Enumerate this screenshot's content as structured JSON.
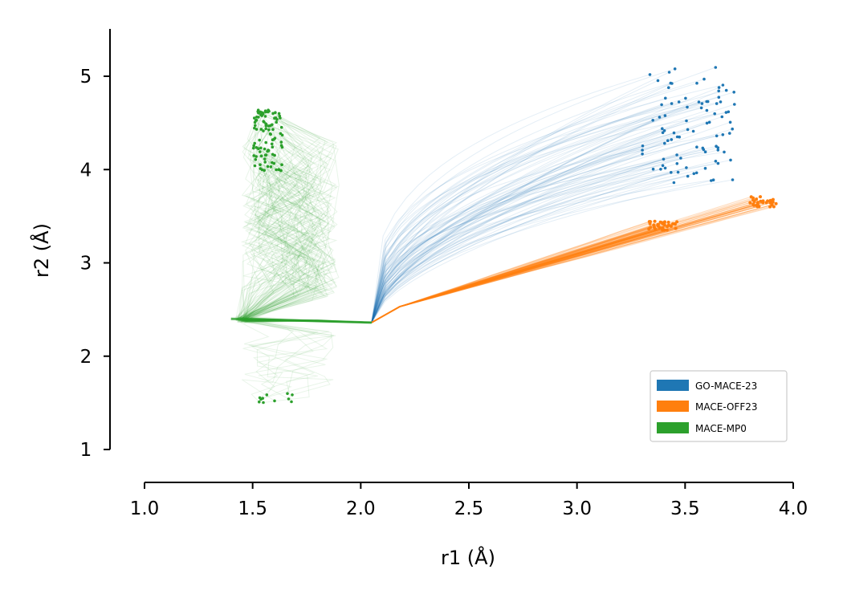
{
  "chart_data": {
    "type": "line",
    "xlabel": "r1 (Å)",
    "ylabel": "r2 (Å)",
    "xlim": [
      1.0,
      4.0
    ],
    "ylim": [
      0.7,
      5.5
    ],
    "x_ticks": [
      1.0,
      1.5,
      2.0,
      2.5,
      3.0,
      3.5,
      4.0
    ],
    "y_ticks": [
      1,
      2,
      3,
      4,
      5
    ],
    "x_tick_labels": [
      "1.0",
      "1.5",
      "2.0",
      "2.5",
      "3.0",
      "3.5",
      "4.0"
    ],
    "y_tick_labels": [
      "1",
      "2",
      "3",
      "4",
      "5"
    ],
    "grid": false,
    "legend_position": "lower-right",
    "start_point": [
      2.05,
      2.36
    ],
    "series": [
      {
        "name": "GO-MACE-23",
        "color": "#1f77b4",
        "trajectory_count": 90,
        "endpoint_region": {
          "x": [
            3.28,
            3.73
          ],
          "y": [
            3.8,
            5.15
          ]
        },
        "representative_path": [
          [
            2.05,
            2.36
          ],
          [
            2.1,
            2.8
          ],
          [
            2.3,
            3.2
          ],
          [
            2.6,
            3.5
          ],
          [
            3.0,
            3.8
          ],
          [
            3.4,
            4.15
          ],
          [
            3.6,
            4.4
          ]
        ]
      },
      {
        "name": "MACE-OFF23",
        "color": "#ff7f0e",
        "trajectory_count": 60,
        "endpoint_clusters": [
          {
            "x": [
              3.33,
              3.47
            ],
            "y": [
              3.35,
              3.45
            ]
          },
          {
            "x": [
              3.8,
              3.93
            ],
            "y": [
              3.6,
              3.72
            ]
          }
        ],
        "representative_path": [
          [
            2.05,
            2.36
          ],
          [
            2.18,
            2.53
          ],
          [
            2.6,
            2.8
          ],
          [
            3.0,
            3.07
          ],
          [
            3.4,
            3.35
          ],
          [
            3.85,
            3.66
          ]
        ]
      },
      {
        "name": "MACE-MP0",
        "color": "#2ca02c",
        "trajectory_count": 110,
        "endpoint_clusters": [
          {
            "x": [
              1.48,
              1.66
            ],
            "y": [
              3.95,
              4.66
            ]
          },
          {
            "x": [
              1.5,
              1.72
            ],
            "y": [
              1.5,
              1.6
            ]
          }
        ],
        "representative_path": [
          [
            2.05,
            2.36
          ],
          [
            1.8,
            2.38
          ],
          [
            1.42,
            2.4
          ],
          [
            1.7,
            2.8
          ],
          [
            1.5,
            3.3
          ],
          [
            1.8,
            3.7
          ],
          [
            1.55,
            4.3
          ]
        ]
      }
    ]
  }
}
